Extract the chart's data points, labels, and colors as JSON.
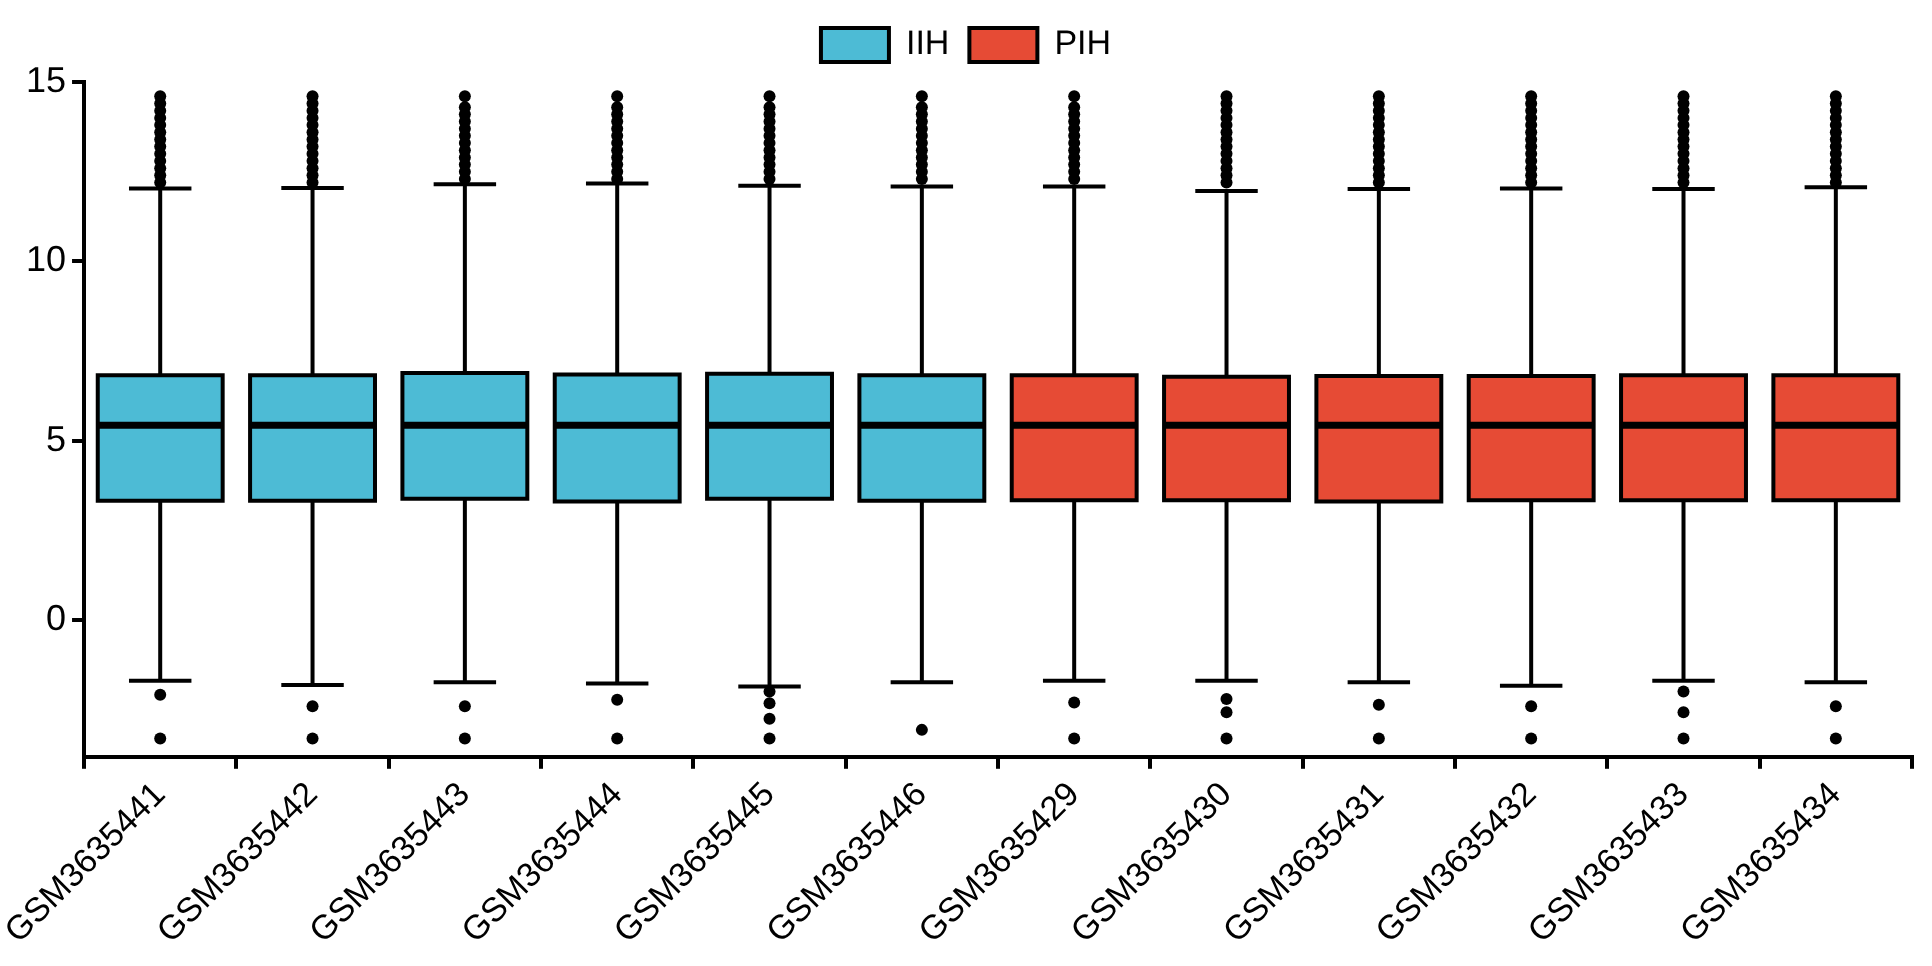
{
  "chart_data": {
    "type": "box",
    "categories": [
      "GSM3635441",
      "GSM3635442",
      "GSM3635443",
      "GSM3635444",
      "GSM3635445",
      "GSM3635446",
      "GSM3635429",
      "GSM3635430",
      "GSM3635431",
      "GSM3635432",
      "GSM3635433",
      "GSM3635434"
    ],
    "ylim": [
      -3.8,
      15
    ],
    "yticks": [
      0,
      5,
      10,
      15
    ],
    "legend": "top",
    "series": [
      {
        "name": "IIH",
        "color": "#4dbbd5",
        "boxes": [
          {
            "low": -1.68,
            "q1": 3.33,
            "median": 5.44,
            "q3": 6.83,
            "high": 12.03,
            "outliers": [
              -2.07,
              -3.29,
              12.2,
              12.4,
              12.6,
              12.8,
              13,
              13.2,
              13.4,
              13.6,
              13.8,
              14,
              14.2,
              14.4,
              14.6
            ]
          },
          {
            "low": -1.8,
            "q1": 3.33,
            "median": 5.44,
            "q3": 6.83,
            "high": 12.05,
            "outliers": [
              -2.39,
              -3.29,
              12.2,
              12.4,
              12.6,
              12.8,
              13,
              13.2,
              13.4,
              13.6,
              13.8,
              14,
              14.2,
              14.4,
              14.6
            ]
          },
          {
            "low": -1.72,
            "q1": 3.39,
            "median": 5.44,
            "q3": 6.89,
            "high": 12.15,
            "outliers": [
              -2.39,
              -3.29,
              12.3,
              12.5,
              12.7,
              12.9,
              13.1,
              13.3,
              13.5,
              13.7,
              13.9,
              14.1,
              14.3,
              14.6
            ]
          },
          {
            "low": -1.76,
            "q1": 3.31,
            "median": 5.44,
            "q3": 6.85,
            "high": 12.17,
            "outliers": [
              -2.21,
              -3.29,
              12.3,
              12.5,
              12.7,
              12.9,
              13.1,
              13.3,
              13.5,
              13.7,
              13.9,
              14.1,
              14.3,
              14.6
            ]
          },
          {
            "low": -1.84,
            "q1": 3.39,
            "median": 5.44,
            "q3": 6.87,
            "high": 12.11,
            "outliers": [
              -1.98,
              -2.31,
              -2.74,
              -3.29,
              12.3,
              12.5,
              12.7,
              12.9,
              13.1,
              13.3,
              13.5,
              13.7,
              13.9,
              14.1,
              14.3,
              14.6
            ]
          },
          {
            "low": -1.72,
            "q1": 3.33,
            "median": 5.44,
            "q3": 6.83,
            "high": 12.09,
            "outliers": [
              -3.05,
              12.3,
              12.5,
              12.7,
              12.9,
              13.1,
              13.3,
              13.5,
              13.7,
              13.9,
              14.1,
              14.3,
              14.6
            ]
          },
          null,
          null,
          null,
          null,
          null,
          null
        ]
      },
      {
        "name": "PIH",
        "color": "#e64b35",
        "boxes": [
          null,
          null,
          null,
          null,
          null,
          null,
          {
            "low": -1.68,
            "q1": 3.35,
            "median": 5.44,
            "q3": 6.83,
            "high": 12.09,
            "outliers": [
              -2.29,
              -3.29,
              12.3,
              12.5,
              12.7,
              12.9,
              13.1,
              13.3,
              13.5,
              13.7,
              13.9,
              14.1,
              14.3,
              14.6
            ]
          },
          {
            "low": -1.68,
            "q1": 3.35,
            "median": 5.44,
            "q3": 6.79,
            "high": 11.96,
            "outliers": [
              -2.19,
              -2.56,
              -3.29,
              12.2,
              12.4,
              12.6,
              12.8,
              13,
              13.2,
              13.4,
              13.6,
              13.8,
              14,
              14.2,
              14.4,
              14.6
            ]
          },
          {
            "low": -1.72,
            "q1": 3.31,
            "median": 5.44,
            "q3": 6.81,
            "high": 12.02,
            "outliers": [
              -2.35,
              -3.29,
              12.2,
              12.4,
              12.6,
              12.8,
              13,
              13.2,
              13.4,
              13.6,
              13.8,
              14,
              14.2,
              14.4,
              14.6
            ]
          },
          {
            "low": -1.82,
            "q1": 3.35,
            "median": 5.44,
            "q3": 6.81,
            "high": 12.03,
            "outliers": [
              -2.39,
              -3.29,
              12.2,
              12.4,
              12.6,
              12.8,
              13,
              13.2,
              13.4,
              13.6,
              13.8,
              14,
              14.2,
              14.4,
              14.6
            ]
          },
          {
            "low": -1.68,
            "q1": 3.35,
            "median": 5.44,
            "q3": 6.83,
            "high": 12.02,
            "outliers": [
              -1.98,
              -2.56,
              -3.29,
              12.2,
              12.4,
              12.6,
              12.8,
              13,
              13.2,
              13.4,
              13.6,
              13.8,
              14,
              14.2,
              14.4,
              14.6
            ]
          },
          {
            "low": -1.72,
            "q1": 3.35,
            "median": 5.44,
            "q3": 6.83,
            "high": 12.07,
            "outliers": [
              -2.39,
              -3.29,
              12.2,
              12.4,
              12.6,
              12.8,
              13,
              13.2,
              13.4,
              13.6,
              13.8,
              14,
              14.2,
              14.4,
              14.6
            ]
          }
        ]
      }
    ]
  }
}
